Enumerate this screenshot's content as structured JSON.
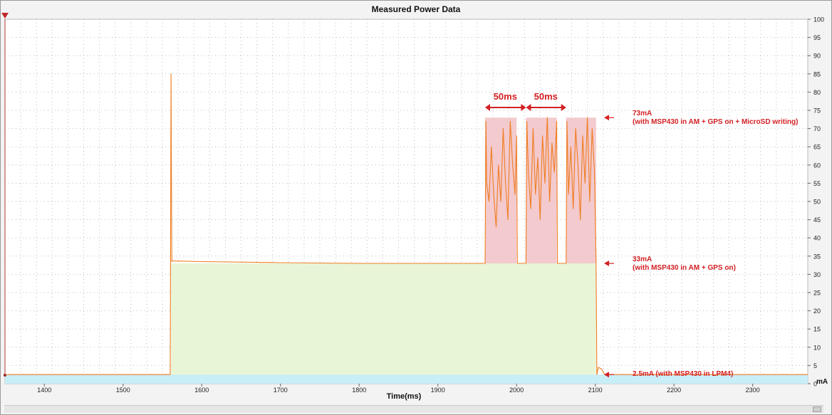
{
  "chart_data": {
    "type": "area",
    "title": "Measured Power Data",
    "xlabel": "Time(ms)",
    "ylabel": "mA",
    "xlim": [
      1350,
      2370
    ],
    "ylim": [
      0,
      100
    ],
    "x_ticks": [
      1400,
      1500,
      1600,
      1700,
      1800,
      1900,
      2000,
      2100,
      2200,
      2300
    ],
    "y_ticks": [
      0,
      5,
      10,
      15,
      20,
      25,
      30,
      35,
      40,
      45,
      50,
      55,
      60,
      65,
      70,
      75,
      80,
      85,
      90,
      95,
      100
    ],
    "grid": true,
    "y_axis_side": "right",
    "series": [
      {
        "x": [
          1350,
          1560,
          1561,
          1562,
          1563,
          1600,
          1700,
          1800,
          1900,
          1960,
          1961,
          1962,
          1965,
          1968,
          1971,
          1974,
          1977,
          1980,
          1983,
          1986,
          1989,
          1992,
          1995,
          1998,
          2000,
          2001,
          2012,
          2013,
          2015,
          2018,
          2021,
          2024,
          2027,
          2030,
          2033,
          2036,
          2039,
          2042,
          2045,
          2048,
          2051,
          2052,
          2063,
          2064,
          2066,
          2069,
          2072,
          2075,
          2078,
          2081,
          2084,
          2087,
          2090,
          2093,
          2096,
          2099,
          2101,
          2102,
          2104,
          2108,
          2112,
          2370
        ],
        "y": [
          2.5,
          2.5,
          85,
          33.5,
          33.7,
          33.5,
          33.2,
          33,
          33,
          33,
          72,
          55,
          50,
          65,
          52,
          43,
          60,
          50,
          70,
          55,
          45,
          72,
          60,
          52,
          68,
          33,
          33,
          72,
          58,
          48,
          70,
          52,
          62,
          45,
          68,
          55,
          73,
          50,
          66,
          58,
          72,
          33,
          33,
          72,
          52,
          65,
          48,
          70,
          60,
          45,
          68,
          55,
          73,
          50,
          70,
          58,
          33,
          2.5,
          4.5,
          4.0,
          2.5,
          2.5
        ]
      }
    ],
    "highlight_bands": [
      {
        "x0": 1960,
        "x1": 2000,
        "y0": 33,
        "y1": 73
      },
      {
        "x0": 2012,
        "x1": 2051,
        "y0": 33,
        "y1": 73
      },
      {
        "x0": 2063,
        "x1": 2101,
        "y0": 33,
        "y1": 73
      }
    ],
    "baseline_band": {
      "y0": 0,
      "y1": 2.5
    },
    "area_band": {
      "x0": 1561,
      "x1": 2101,
      "y0": 2.5,
      "y1": 33
    },
    "duration_labels": [
      {
        "text": "50ms",
        "x0": 1960,
        "x1": 2012
      },
      {
        "text": "50ms",
        "x0": 2012,
        "x1": 2063
      }
    ],
    "annotations": [
      {
        "lines": [
          "73mA",
          "(with MSP430 in AM + GPS on + MicroSD writing)"
        ],
        "y": 73
      },
      {
        "lines": [
          "33mA",
          "(with MSP430 in AM + GPS on)"
        ],
        "y": 33
      },
      {
        "lines": [
          "2.5mA (with MSP430 in LPM4)"
        ],
        "y": 2.5
      }
    ],
    "colors": {
      "line": "#f0a040",
      "spike": "#ef7d22",
      "area_fill": "#e8f5d6",
      "band_fill": "#f2c4c8",
      "baseline_fill": "#c8eef8",
      "annotation": "#d32024"
    }
  }
}
